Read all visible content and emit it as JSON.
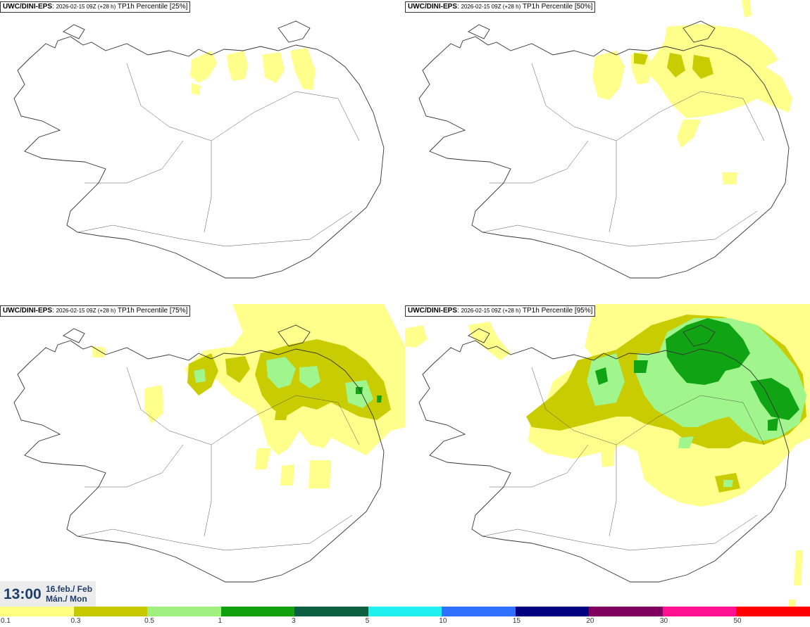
{
  "panels": [
    {
      "model": "UWC/DINI-EPS",
      "run": "2026-02-15 09Z (+28 h)",
      "field": "TP1h Percentile [25%]"
    },
    {
      "model": "UWC/DINI-EPS",
      "run": "2026-02-15 09Z (+28 h)",
      "field": "TP1h Percentile [50%]"
    },
    {
      "model": "UWC/DINI-EPS",
      "run": "2026-02-15 09Z (+28 h)",
      "field": "TP1h Percentile [75%]"
    },
    {
      "model": "UWC/DINI-EPS",
      "run": "2026-02-15 09Z (+28 h)",
      "field": "TP1h Percentile [95%]"
    }
  ],
  "time": {
    "clock": "13:00",
    "date_line1": "16.feb./ Feb",
    "date_line2": "Mán./ Mon"
  },
  "legend": {
    "colors": [
      "#ffff80",
      "#c8c800",
      "#a0f080",
      "#10a010",
      "#0c6040",
      "#20f0f0",
      "#3070ff",
      "#000080",
      "#800060",
      "#ff1090",
      "#ff0000"
    ],
    "labels": [
      "0.1",
      "0.3",
      "0.5",
      "1",
      "3",
      "5",
      "10",
      "15",
      "20",
      "30",
      "50"
    ]
  },
  "colors": {
    "c01": "#ffff8c",
    "c03": "#c8cc00",
    "c05": "#a0f58c",
    "c1": "#10a414",
    "coast": "#333333"
  }
}
